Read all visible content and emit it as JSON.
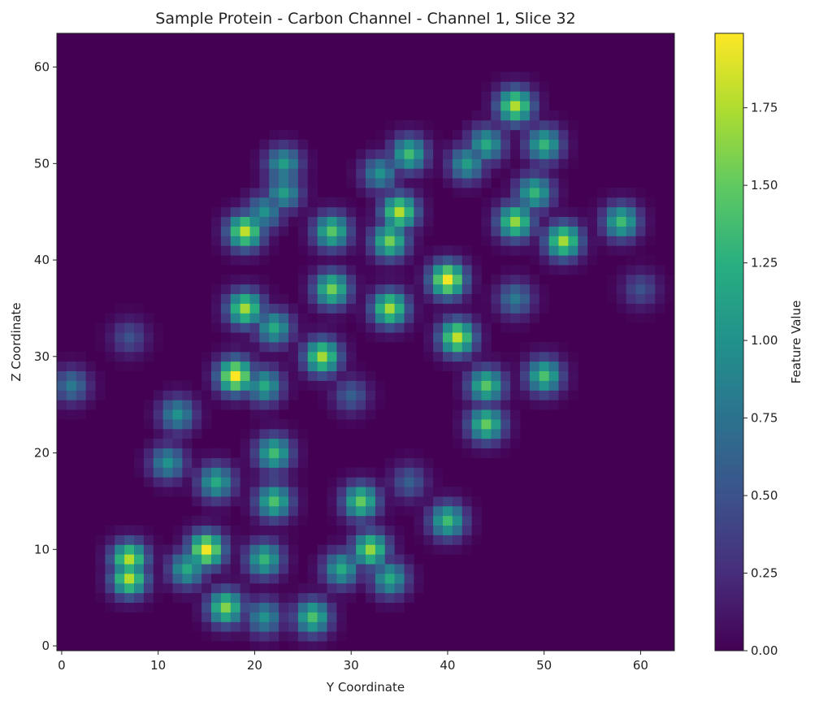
{
  "chart_data": {
    "type": "heatmap",
    "title": "Sample Protein - Carbon Channel - Channel 1, Slice 32",
    "xlabel": "Y Coordinate",
    "ylabel": "Z Coordinate",
    "xlim": [
      -0.5,
      63.5
    ],
    "ylim": [
      -0.5,
      63.5
    ],
    "x_ticks": [
      0,
      10,
      20,
      30,
      40,
      50,
      60
    ],
    "y_ticks": [
      0,
      10,
      20,
      30,
      40,
      50,
      60
    ],
    "grid": false,
    "colormap": "viridis",
    "colorbar": {
      "label": "Feature Value",
      "range": [
        0,
        1.99
      ],
      "ticks": [
        "0.00",
        "0.25",
        "0.50",
        "0.75",
        "1.00",
        "1.25",
        "1.50",
        "1.75"
      ]
    },
    "peaks": [
      {
        "y": 47,
        "z": 56,
        "value": 1.75
      },
      {
        "y": 50,
        "z": 52,
        "value": 1.3
      },
      {
        "y": 44,
        "z": 52,
        "value": 1.2
      },
      {
        "y": 42,
        "z": 50,
        "value": 1.1
      },
      {
        "y": 36,
        "z": 51,
        "value": 1.35
      },
      {
        "y": 33,
        "z": 49,
        "value": 1.0
      },
      {
        "y": 23,
        "z": 50,
        "value": 1.1
      },
      {
        "y": 23,
        "z": 47,
        "value": 1.1
      },
      {
        "y": 49,
        "z": 47,
        "value": 1.3
      },
      {
        "y": 47,
        "z": 44,
        "value": 1.65
      },
      {
        "y": 35,
        "z": 45,
        "value": 1.75
      },
      {
        "y": 34,
        "z": 42,
        "value": 1.55
      },
      {
        "y": 19,
        "z": 43,
        "value": 1.8
      },
      {
        "y": 21,
        "z": 45,
        "value": 1.0
      },
      {
        "y": 28,
        "z": 43,
        "value": 1.45
      },
      {
        "y": 52,
        "z": 42,
        "value": 1.7
      },
      {
        "y": 58,
        "z": 44,
        "value": 1.35
      },
      {
        "y": 40,
        "z": 38,
        "value": 1.95
      },
      {
        "y": 28,
        "z": 37,
        "value": 1.55
      },
      {
        "y": 19,
        "z": 35,
        "value": 1.7
      },
      {
        "y": 34,
        "z": 35,
        "value": 1.7
      },
      {
        "y": 47,
        "z": 36,
        "value": 0.8
      },
      {
        "y": 22,
        "z": 33,
        "value": 1.2
      },
      {
        "y": 41,
        "z": 32,
        "value": 1.8
      },
      {
        "y": 27,
        "z": 30,
        "value": 1.7
      },
      {
        "y": 18,
        "z": 28,
        "value": 1.99
      },
      {
        "y": 21,
        "z": 27,
        "value": 1.2
      },
      {
        "y": 44,
        "z": 27,
        "value": 1.45
      },
      {
        "y": 50,
        "z": 28,
        "value": 1.4
      },
      {
        "y": 44,
        "z": 23,
        "value": 1.5
      },
      {
        "y": 12,
        "z": 24,
        "value": 1.0
      },
      {
        "y": 1,
        "z": 27,
        "value": 0.8
      },
      {
        "y": 22,
        "z": 20,
        "value": 1.35
      },
      {
        "y": 11,
        "z": 19,
        "value": 1.0
      },
      {
        "y": 16,
        "z": 17,
        "value": 1.2
      },
      {
        "y": 22,
        "z": 15,
        "value": 1.4
      },
      {
        "y": 31,
        "z": 15,
        "value": 1.5
      },
      {
        "y": 36,
        "z": 17,
        "value": 0.6
      },
      {
        "y": 40,
        "z": 13,
        "value": 1.35
      },
      {
        "y": 32,
        "z": 10,
        "value": 1.65
      },
      {
        "y": 29,
        "z": 8,
        "value": 1.2
      },
      {
        "y": 21,
        "z": 9,
        "value": 1.3
      },
      {
        "y": 15,
        "z": 10,
        "value": 1.95
      },
      {
        "y": 13,
        "z": 8,
        "value": 1.2
      },
      {
        "y": 7,
        "z": 9,
        "value": 1.75
      },
      {
        "y": 7,
        "z": 7,
        "value": 1.75
      },
      {
        "y": 17,
        "z": 4,
        "value": 1.6
      },
      {
        "y": 21,
        "z": 3,
        "value": 1.0
      },
      {
        "y": 26,
        "z": 3,
        "value": 1.4
      },
      {
        "y": 34,
        "z": 7,
        "value": 1.2
      },
      {
        "y": 30,
        "z": 26,
        "value": 0.6
      },
      {
        "y": 7,
        "z": 32,
        "value": 0.5
      },
      {
        "y": 60,
        "z": 37,
        "value": 0.5
      }
    ]
  }
}
